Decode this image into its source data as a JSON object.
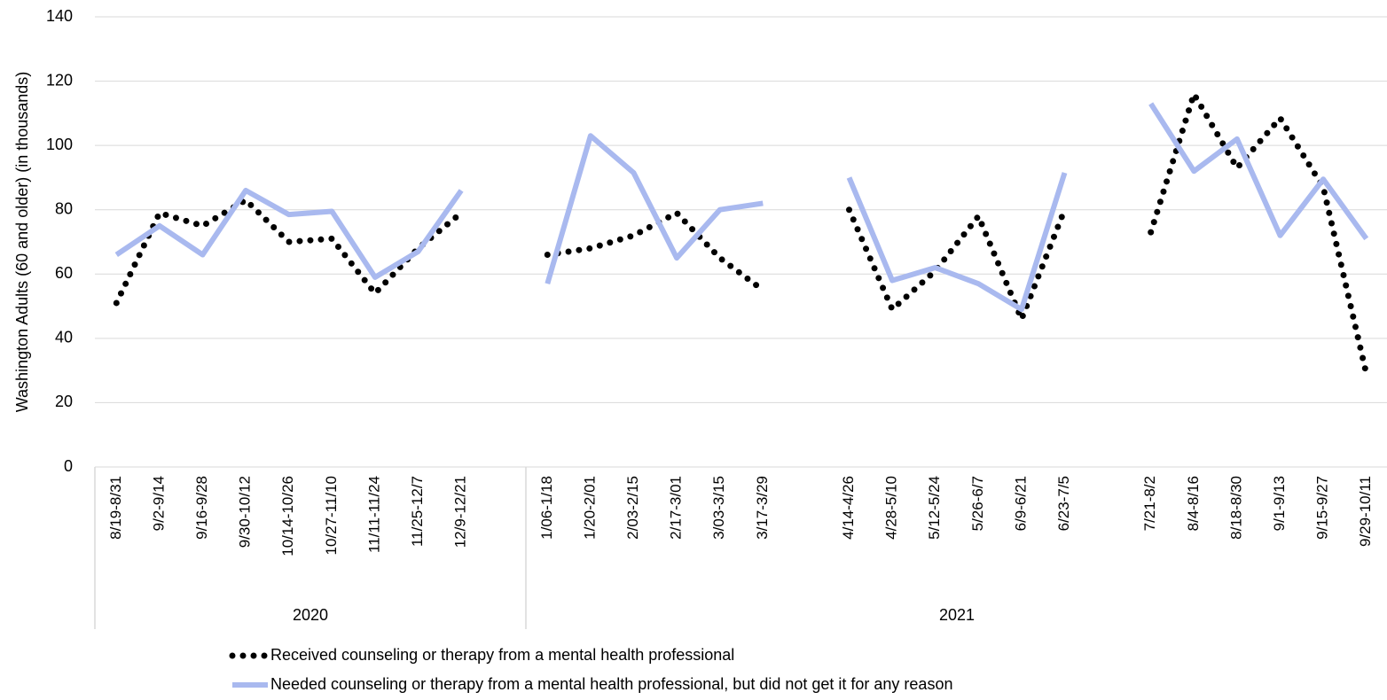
{
  "chart_data": {
    "type": "line",
    "y_axis_title": "Washington Adults (60 and older) (in thousands)",
    "categories": [
      "8/19-8/31",
      "9/2-9/14",
      "9/16-9/28",
      "9/30-10/12",
      "10/14-10/26",
      "10/27-11/10",
      "11/11-11/24",
      "11/25-12/7",
      "12/9-12/21",
      null,
      "1/06-1/18",
      "1/20-2/01",
      "2/03-2/15",
      "2/17-3/01",
      "3/03-3/15",
      "3/17-3/29",
      null,
      "4/14-4/26",
      "4/28-5/10",
      "5/12-5/24",
      "5/26-6/7",
      "6/9-6/21",
      "6/23-7/5",
      null,
      "7/21-8/2",
      "8/4-8/16",
      "8/18-8/30",
      "9/1-9/13",
      "9/15-9/27",
      "9/29-10/11"
    ],
    "category_groups": [
      "2020",
      "2021"
    ],
    "series": [
      {
        "name": "Received counseling or therapy from a mental health professional",
        "color": "#000000",
        "style": "dotted",
        "values": [
          51,
          79,
          75,
          83,
          70,
          71,
          54,
          68,
          79,
          null,
          66,
          68,
          72,
          79,
          65,
          55,
          null,
          80,
          49,
          61,
          78,
          46,
          80,
          null,
          73,
          116,
          93,
          108.5,
          87,
          29
        ]
      },
      {
        "name": "Needed counseling or therapy from a mental health professional, but did not get it for any reason",
        "color": "#a9b9ef",
        "style": "solid",
        "values": [
          66,
          75,
          66,
          86,
          78.5,
          79.5,
          59,
          67,
          86,
          null,
          57,
          103,
          91.5,
          65,
          80,
          82,
          null,
          90,
          58,
          62,
          57,
          49,
          91.5,
          null,
          113,
          92,
          102,
          72,
          89.5,
          71
        ]
      }
    ],
    "ylim": [
      0,
      140
    ],
    "yticks": [
      0,
      20,
      40,
      60,
      80,
      100,
      120,
      140
    ],
    "grid": true,
    "legend": "bottom"
  }
}
